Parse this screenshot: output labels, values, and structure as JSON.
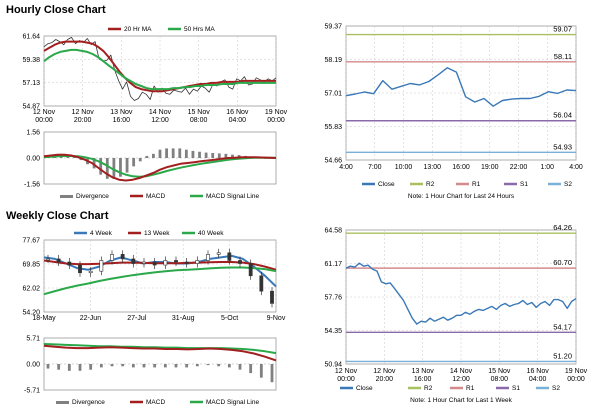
{
  "colors": {
    "close": "#3a78b8",
    "ma20": "#a31f1f",
    "ma50": "#2aa84a",
    "r2": "#a8c060",
    "r1": "#d48a8a",
    "s1": "#8a6aa8",
    "s2": "#7ab0d8",
    "divergence": "#808080",
    "grid": "#c8c8c8"
  },
  "sections": {
    "hourly_title": "Hourly Close Chart",
    "weekly_title": "Weekly Close Chart"
  },
  "chart_data": [
    {
      "id": "hourly-price",
      "type": "line",
      "title": "Hourly Close Chart",
      "legend": [
        "20 Hr MA",
        "50 Hrs MA"
      ],
      "y_ticks": [
        "61.64",
        "59.38",
        "57.13",
        "54.87"
      ],
      "ylim": [
        54.87,
        61.64
      ],
      "x_ticks": [
        "12 Nov\n00:00",
        "12 Nov\n20:00",
        "13 Nov\n16:00",
        "14 Nov\n12:00",
        "15 Nov\n08:00",
        "16 Nov\n04:00",
        "19 Nov\n00:00"
      ],
      "series": [
        {
          "name": "Close",
          "values": [
            60.6,
            60.9,
            61.0,
            61.3,
            61.1,
            60.8,
            61.3,
            61.5,
            60.9,
            61.2,
            61.0,
            61.4,
            60.8,
            61.1,
            59.4,
            59.2,
            59.3,
            59.8,
            58.3,
            57.3,
            56.5,
            57.2,
            55.8,
            55.4,
            55.6,
            56.2,
            56.0,
            55.5,
            56.8,
            56.2,
            56.6,
            56.1,
            56.0,
            56.4,
            56.3,
            56.2,
            56.6,
            56.0,
            56.5,
            56.3,
            56.8,
            56.6,
            56.2,
            57.0,
            56.8,
            57.2,
            57.4,
            56.7,
            56.5,
            57.5,
            57.3,
            57.7,
            56.9,
            57.0,
            57.6,
            57.4,
            57.2,
            57.5,
            57.3,
            57.6
          ]
        },
        {
          "name": "20 Hr MA",
          "values": [
            60.2,
            60.5,
            60.8,
            61.0,
            61.1,
            61.1,
            61.1,
            61.1,
            61.0,
            60.9,
            60.6,
            60.2,
            59.6,
            58.9,
            58.2,
            57.6,
            57.1,
            56.7,
            56.5,
            56.4,
            56.3,
            56.3,
            56.3,
            56.4,
            56.5,
            56.6,
            56.7,
            56.8,
            56.9,
            57.0,
            57.0,
            57.1,
            57.1,
            57.2,
            57.2,
            57.2,
            57.2,
            57.3,
            57.3,
            57.3,
            57.3,
            57.3,
            57.3,
            57.3
          ]
        },
        {
          "name": "50 Hrs MA",
          "values": [
            59.2,
            59.6,
            59.9,
            60.1,
            60.2,
            60.3,
            60.3,
            60.2,
            60.1,
            59.9,
            59.6,
            59.2,
            58.8,
            58.4,
            58.0,
            57.6,
            57.3,
            57.0,
            56.8,
            56.6,
            56.5,
            56.5,
            56.5,
            56.5,
            56.6,
            56.6,
            56.7,
            56.7,
            56.8,
            56.8,
            56.9,
            56.9,
            56.9,
            57.0,
            57.0,
            57.0,
            57.1,
            57.1,
            57.1,
            57.1,
            57.1,
            57.1,
            57.1,
            57.1
          ]
        }
      ]
    },
    {
      "id": "hourly-macd",
      "type": "line",
      "y_ticks": [
        "1.56",
        "0.00",
        "-1.56"
      ],
      "ylim": [
        -1.56,
        1.56
      ],
      "legend": [
        "Divergence",
        "MACD",
        "MACD Signal Line"
      ],
      "series": [
        {
          "name": "MACD",
          "values": [
            0.1,
            0.15,
            0.2,
            0.2,
            0.15,
            0.05,
            -0.1,
            -0.3,
            -0.6,
            -0.9,
            -1.15,
            -1.3,
            -1.35,
            -1.3,
            -1.2,
            -1.05,
            -0.9,
            -0.7,
            -0.55,
            -0.45,
            -0.35,
            -0.3,
            -0.25,
            -0.2,
            -0.15,
            -0.1,
            -0.05,
            0.0,
            0.02,
            0.04,
            0.05,
            0.04,
            0.03,
            0.02,
            0.0
          ]
        },
        {
          "name": "MACD Signal Line",
          "values": [
            0.05,
            0.08,
            0.1,
            0.12,
            0.12,
            0.1,
            0.05,
            -0.05,
            -0.2,
            -0.4,
            -0.65,
            -0.85,
            -1.0,
            -1.1,
            -1.12,
            -1.1,
            -1.0,
            -0.9,
            -0.78,
            -0.68,
            -0.58,
            -0.5,
            -0.42,
            -0.35,
            -0.28,
            -0.22,
            -0.16,
            -0.1,
            -0.06,
            -0.03,
            0.0,
            0.02,
            0.02,
            0.02,
            0.02
          ]
        }
      ]
    },
    {
      "id": "hourly-24h",
      "type": "line",
      "note": "Note: 1 Hour Chart for Last 24 Hours",
      "y_ticks": [
        "59.37",
        "58.19",
        "57.01",
        "55.83",
        "54.66"
      ],
      "ylim": [
        54.66,
        59.37
      ],
      "x_ticks": [
        "4:00",
        "7:00",
        "10:00",
        "13:00",
        "16:00",
        "19:00",
        "22:00",
        "1:00",
        "4:00"
      ],
      "levels": [
        {
          "name": "R2",
          "value": 59.07,
          "label": "59.07"
        },
        {
          "name": "R1",
          "value": 58.11,
          "label": "58.11"
        },
        {
          "name": "S1",
          "value": 56.04,
          "label": "56.04"
        },
        {
          "name": "S2",
          "value": 54.93,
          "label": "54.93"
        }
      ],
      "legend": [
        "Close",
        "R2",
        "R1",
        "S1",
        "S2"
      ],
      "series": [
        {
          "name": "Close",
          "values": [
            56.92,
            56.98,
            57.05,
            56.99,
            57.45,
            57.15,
            57.25,
            57.35,
            57.3,
            57.42,
            57.65,
            57.9,
            57.75,
            56.88,
            56.7,
            56.82,
            56.55,
            56.75,
            56.8,
            56.82,
            56.82,
            56.9,
            57.06,
            57.0,
            57.12,
            57.1
          ]
        }
      ]
    },
    {
      "id": "weekly-price",
      "type": "line",
      "title": "Weekly Close Chart",
      "legend": [
        "4 Week",
        "13 Week",
        "40 Week"
      ],
      "y_ticks": [
        "77.67",
        "69.85",
        "62.02",
        "54.20"
      ],
      "ylim": [
        54.2,
        77.67
      ],
      "x_ticks": [
        "18-May",
        "22-Jun",
        "27-Jul",
        "31-Aug",
        "5-Oct",
        "9-Nov"
      ],
      "series": [
        {
          "name": "4 Week",
          "values": [
            72.0,
            71.5,
            70.0,
            68.5,
            68.0,
            69.0,
            71.0,
            72.0,
            71.0,
            70.0,
            70.5,
            70.5,
            70.0,
            70.0,
            70.5,
            71.5,
            72.0,
            72.5,
            71.5,
            69.0,
            66.0,
            62.5
          ]
        },
        {
          "name": "13 Week",
          "values": [
            71.0,
            70.5,
            70.0,
            69.8,
            69.8,
            69.9,
            70.1,
            70.3,
            70.3,
            70.2,
            70.1,
            70.1,
            70.1,
            70.2,
            70.3,
            70.4,
            70.5,
            70.5,
            70.3,
            69.8,
            69.0,
            68.0
          ]
        },
        {
          "name": "40 Week",
          "values": [
            60.0,
            61.0,
            62.0,
            62.8,
            63.5,
            64.3,
            65.0,
            65.6,
            66.2,
            66.7,
            67.1,
            67.5,
            67.8,
            68.0,
            68.2,
            68.4,
            68.6,
            68.7,
            68.7,
            68.5,
            68.2,
            67.5
          ]
        },
        {
          "name": "Close",
          "values": [
            71.5,
            70.5,
            69.5,
            67.0,
            67.5,
            71.0,
            73.0,
            71.5,
            70.0,
            70.5,
            69.5,
            71.0,
            70.5,
            70.0,
            71.0,
            73.0,
            73.5,
            71.0,
            70.0,
            66.0,
            61.0,
            57.0
          ]
        }
      ]
    },
    {
      "id": "weekly-macd",
      "type": "line",
      "y_ticks": [
        "5.71",
        "0.00",
        "-5.71"
      ],
      "ylim": [
        -5.71,
        5.71
      ],
      "legend": [
        "Divergence",
        "MACD",
        "MACD Signal Line"
      ],
      "series": [
        {
          "name": "MACD",
          "values": [
            4.0,
            3.8,
            3.6,
            3.5,
            3.5,
            3.6,
            3.7,
            3.6,
            3.5,
            3.4,
            3.4,
            3.3,
            3.3,
            3.2,
            3.3,
            3.4,
            3.3,
            3.1,
            2.8,
            2.3,
            1.6,
            0.8
          ]
        },
        {
          "name": "MACD Signal Line",
          "values": [
            4.4,
            4.3,
            4.2,
            4.1,
            4.0,
            3.9,
            3.9,
            3.8,
            3.8,
            3.7,
            3.7,
            3.6,
            3.6,
            3.5,
            3.5,
            3.5,
            3.5,
            3.4,
            3.3,
            3.1,
            2.8,
            2.4
          ]
        }
      ]
    },
    {
      "id": "weekly-1w",
      "type": "line",
      "note": "Note: 1 Hour Chart for Last 1 Week",
      "y_ticks": [
        "64.58",
        "61.17",
        "57.76",
        "54.35",
        "50.94"
      ],
      "ylim": [
        50.94,
        64.58
      ],
      "x_ticks": [
        "12 Nov\n00:00",
        "12 Nov\n20:00",
        "13 Nov\n16:00",
        "14 Nov\n12:00",
        "15 Nov\n08:00",
        "16 Nov\n04:00",
        "19 Nov\n00:00"
      ],
      "levels": [
        {
          "name": "R2",
          "value": 64.26,
          "label": "64.26"
        },
        {
          "name": "R1",
          "value": 60.7,
          "label": "60.70"
        },
        {
          "name": "S1",
          "value": 54.17,
          "label": "54.17"
        },
        {
          "name": "S2",
          "value": 51.2,
          "label": "51.20"
        }
      ],
      "legend": [
        "Close",
        "R2",
        "R1",
        "S1",
        "S2"
      ],
      "series": [
        {
          "name": "Close",
          "values": [
            60.7,
            60.9,
            60.8,
            61.2,
            60.9,
            61.0,
            60.6,
            60.4,
            59.3,
            59.1,
            59.2,
            58.6,
            58.0,
            57.4,
            56.5,
            55.6,
            55.0,
            55.3,
            55.2,
            55.6,
            55.3,
            55.5,
            55.7,
            55.4,
            55.6,
            55.9,
            55.9,
            56.2,
            56.0,
            56.3,
            56.5,
            56.4,
            56.6,
            56.8,
            56.5,
            56.9,
            57.1,
            56.8,
            57.0,
            57.1,
            57.4,
            57.0,
            57.2,
            56.7,
            57.1,
            57.3,
            56.9,
            57.5,
            57.5,
            57.3,
            56.6,
            57.3,
            57.6
          ]
        }
      ]
    }
  ]
}
